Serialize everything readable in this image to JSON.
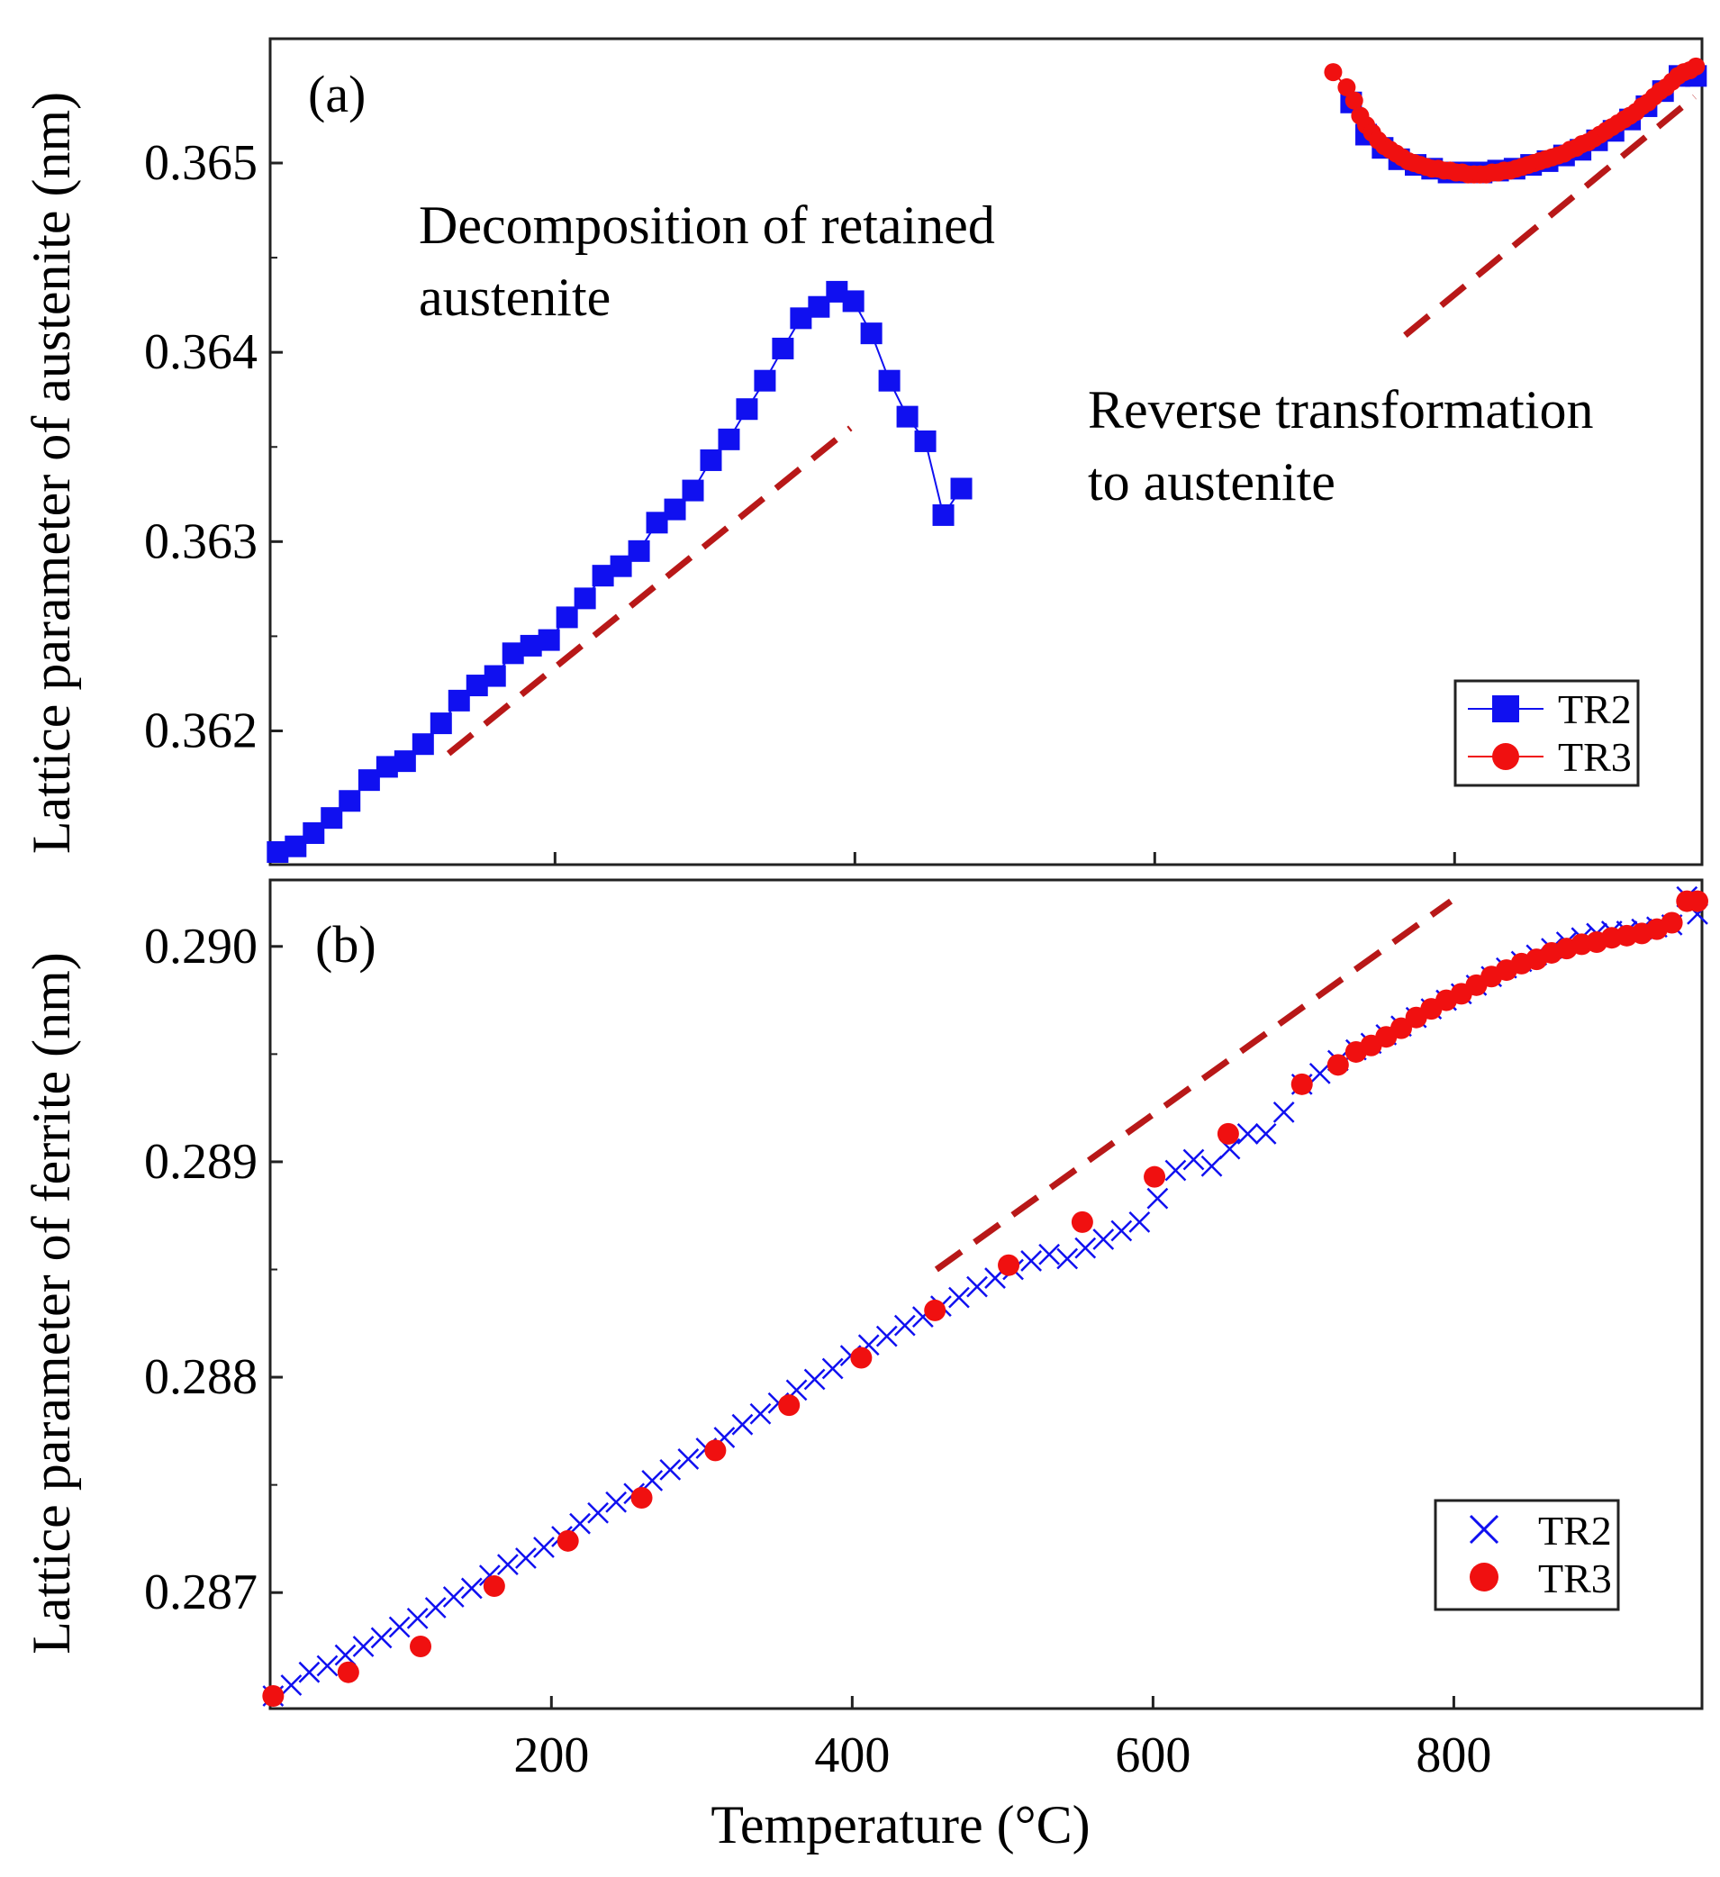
{
  "colors": {
    "tr2": "#1010f0",
    "tr3": "#f01010",
    "dashed": "#b81818",
    "axis": "#222222"
  },
  "chart_data": [
    {
      "type": "scatter",
      "panel_label": "(a)",
      "ylabel": "Lattice parameter of austenite  (nm)",
      "xlim": [
        10,
        965
      ],
      "ylim": [
        0.36136,
        0.36559
      ],
      "yticks": [
        0.362,
        0.363,
        0.364,
        0.365
      ],
      "ytick_labels": [
        "0.362",
        "0.363",
        "0.364",
        "0.365"
      ],
      "xticks": [
        200,
        400,
        600,
        800
      ],
      "annotations": [
        {
          "lines": [
            "Decomposition of retained",
            "austenite"
          ]
        },
        {
          "lines": [
            "Reverse transformation",
            "to austenite"
          ]
        }
      ],
      "legend": [
        "TR2",
        "TR3"
      ],
      "series": [
        {
          "name": "TR2",
          "marker": "square",
          "x": [
            15,
            27,
            39,
            51,
            63,
            76,
            88,
            100,
            112,
            124,
            136,
            148,
            160,
            172,
            184,
            196,
            208,
            220,
            232,
            244,
            256,
            268,
            280,
            292,
            304,
            316,
            328,
            340,
            352,
            364,
            376,
            388,
            399,
            411,
            423,
            435,
            447,
            459,
            471,
            731,
            741,
            752,
            763,
            774,
            785,
            796,
            807,
            818,
            829,
            840,
            851,
            862,
            873,
            884,
            895,
            906,
            917,
            928,
            939,
            950,
            961
          ],
          "y": [
            0.36136,
            0.36139,
            0.36146,
            0.36154,
            0.36163,
            0.36174,
            0.36181,
            0.36184,
            0.36193,
            0.36204,
            0.36216,
            0.36224,
            0.36229,
            0.36241,
            0.36245,
            0.36248,
            0.3626,
            0.3627,
            0.36282,
            0.36287,
            0.36295,
            0.3631,
            0.36317,
            0.36327,
            0.36343,
            0.36354,
            0.3637,
            0.36385,
            0.36402,
            0.36418,
            0.36424,
            0.36432,
            0.36427,
            0.3641,
            0.36385,
            0.36366,
            0.36353,
            0.36314,
            0.36328,
            0.36532,
            0.36515,
            0.36508,
            0.36502,
            0.36499,
            0.36497,
            0.36495,
            0.36495,
            0.36495,
            0.36496,
            0.36497,
            0.36499,
            0.36501,
            0.36504,
            0.36507,
            0.36512,
            0.36517,
            0.36523,
            0.3653,
            0.36538,
            0.36546,
            0.36546
          ]
        },
        {
          "name": "TR3",
          "marker": "circle",
          "x": [
            719,
            728,
            733,
            737,
            741,
            745,
            749,
            753,
            757,
            761,
            765,
            769,
            773,
            777,
            781,
            785,
            789,
            793,
            797,
            801,
            805,
            809,
            813,
            817,
            821,
            825,
            829,
            833,
            837,
            841,
            845,
            849,
            853,
            857,
            861,
            865,
            869,
            873,
            877,
            881,
            885,
            889,
            893,
            897,
            901,
            905,
            909,
            913,
            917,
            921,
            925,
            929,
            933,
            937,
            941,
            945,
            949,
            953,
            957,
            961
          ],
          "y": [
            0.36548,
            0.3654,
            0.36533,
            0.36525,
            0.3652,
            0.36516,
            0.36512,
            0.36509,
            0.36507,
            0.36505,
            0.36503,
            0.36501,
            0.365,
            0.36499,
            0.36498,
            0.36497,
            0.36497,
            0.36496,
            0.36496,
            0.36495,
            0.36495,
            0.36494,
            0.36494,
            0.36494,
            0.36494,
            0.36495,
            0.36495,
            0.36496,
            0.36496,
            0.36497,
            0.36498,
            0.36499,
            0.365,
            0.36501,
            0.36502,
            0.36503,
            0.36504,
            0.36505,
            0.36507,
            0.36508,
            0.3651,
            0.36511,
            0.36513,
            0.36515,
            0.36517,
            0.36519,
            0.36521,
            0.36523,
            0.36525,
            0.36527,
            0.3653,
            0.36532,
            0.36535,
            0.36538,
            0.3654,
            0.36543,
            0.36546,
            0.36548,
            0.36549,
            0.36551
          ]
        }
      ],
      "dashed_lines": [
        {
          "x": [
            129,
            397
          ],
          "y": [
            0.36188,
            0.3636
          ]
        },
        {
          "x": [
            767,
            960
          ],
          "y": [
            0.36409,
            0.36535
          ]
        }
      ]
    },
    {
      "type": "scatter",
      "panel_label": "(b)",
      "ylabel": "Lattice parameter of ferrite  (nm)",
      "xlabel": "Temperature (°C)",
      "xlim": [
        13,
        965
      ],
      "ylim": [
        0.28652,
        0.29025
      ],
      "yticks": [
        0.287,
        0.288,
        0.289,
        0.29
      ],
      "ytick_labels": [
        "0.287",
        "0.288",
        "0.289",
        "0.290"
      ],
      "xticks": [
        200,
        400,
        600,
        800
      ],
      "xtick_labels": [
        "200",
        "400",
        "600",
        "800"
      ],
      "legend": [
        "TR2",
        "TR3"
      ],
      "series": [
        {
          "name": "TR2",
          "marker": "x",
          "x": [
            15,
            27,
            39,
            51,
            63,
            75,
            87,
            99,
            111,
            123,
            135,
            147,
            159,
            171,
            183,
            195,
            207,
            219,
            231,
            243,
            255,
            267,
            279,
            291,
            303,
            315,
            327,
            339,
            351,
            363,
            375,
            387,
            399,
            411,
            423,
            435,
            447,
            459,
            471,
            483,
            495,
            507,
            519,
            531,
            543,
            555,
            567,
            579,
            591,
            603,
            615,
            627,
            639,
            651,
            663,
            675,
            687,
            699,
            711,
            723,
            735,
            745,
            755,
            765,
            775,
            785,
            795,
            805,
            815,
            825,
            835,
            845,
            855,
            865,
            875,
            885,
            895,
            905,
            915,
            925,
            935,
            945,
            955,
            962
          ],
          "y": [
            0.28652,
            0.28657,
            0.28663,
            0.28666,
            0.28671,
            0.28675,
            0.28679,
            0.28684,
            0.28688,
            0.28693,
            0.28698,
            0.28702,
            0.28708,
            0.28713,
            0.28716,
            0.28721,
            0.28726,
            0.28732,
            0.28737,
            0.28742,
            0.28746,
            0.28752,
            0.28757,
            0.28762,
            0.28767,
            0.28772,
            0.28778,
            0.28783,
            0.28788,
            0.28794,
            0.28799,
            0.28804,
            0.2881,
            0.28815,
            0.28819,
            0.28824,
            0.28828,
            0.28833,
            0.28837,
            0.28842,
            0.28846,
            0.2885,
            0.28854,
            0.28857,
            0.28855,
            0.2886,
            0.28864,
            0.28868,
            0.28872,
            0.28883,
            0.28896,
            0.28901,
            0.28898,
            0.28906,
            0.28913,
            0.28913,
            0.28923,
            0.28936,
            0.28941,
            0.28947,
            0.28952,
            0.28955,
            0.28959,
            0.28963,
            0.28967,
            0.28971,
            0.28975,
            0.28978,
            0.28982,
            0.28986,
            0.2899,
            0.28993,
            0.28996,
            0.28999,
            0.29002,
            0.29004,
            0.29006,
            0.29007,
            0.29007,
            0.29008,
            0.29009,
            0.2901,
            0.29023,
            0.29015
          ]
        },
        {
          "name": "TR3",
          "marker": "circle",
          "x": [
            15,
            65,
            113,
            162,
            211,
            260,
            309,
            358,
            406,
            455,
            504,
            553,
            601,
            650,
            699,
            723,
            735,
            745,
            755,
            765,
            775,
            785,
            795,
            805,
            815,
            825,
            835,
            845,
            855,
            865,
            875,
            885,
            895,
            905,
            915,
            925,
            935,
            945,
            955,
            962
          ],
          "y": [
            0.28652,
            0.28663,
            0.28675,
            0.28703,
            0.28724,
            0.28744,
            0.28766,
            0.28787,
            0.28809,
            0.28831,
            0.28852,
            0.28872,
            0.28893,
            0.28913,
            0.28936,
            0.28945,
            0.28951,
            0.28954,
            0.28958,
            0.28962,
            0.28967,
            0.28971,
            0.28975,
            0.28978,
            0.28982,
            0.28986,
            0.28989,
            0.28992,
            0.28994,
            0.28997,
            0.28999,
            0.29001,
            0.29002,
            0.29004,
            0.29005,
            0.29006,
            0.29008,
            0.29011,
            0.29021,
            0.29021
          ]
        }
      ],
      "dashed_lines": [
        {
          "x": [
            456,
            798
          ],
          "y": [
            0.2885,
            0.29021
          ]
        }
      ]
    }
  ]
}
